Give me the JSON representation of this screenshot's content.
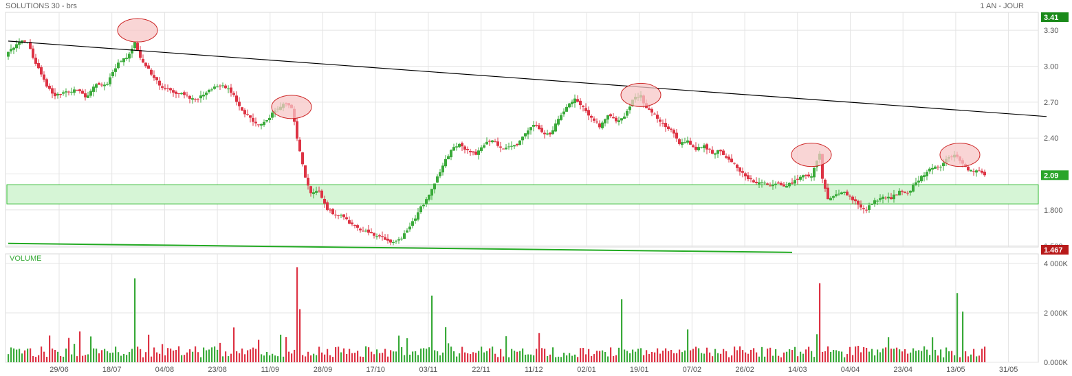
{
  "header": {
    "title": "SOLUTIONS 30 - brs",
    "period": "1 AN - JOUR"
  },
  "volume_panel": {
    "title": "VOLUME"
  },
  "colors": {
    "up": "#3aaa3a",
    "down": "#dd3344",
    "support_band": "#d6f5d6",
    "support_band_border": "#2eb82e",
    "trend_line": "#000000",
    "support_line": "#22aa22",
    "highlight_fill": "#f7c7c7",
    "highlight_stroke": "#cc2222",
    "grid": "#e4e4e4"
  },
  "chart_data": [
    {
      "type": "candlestick",
      "title": "SOLUTIONS 30 - brs",
      "period": "1 AN - JOUR",
      "x_tick_labels": [
        "29/06",
        "18/07",
        "04/08",
        "23/08",
        "11/09",
        "28/09",
        "17/10",
        "03/11",
        "22/11",
        "11/12",
        "02/01",
        "19/01",
        "07/02",
        "26/02",
        "14/03",
        "04/04",
        "23/04",
        "13/05",
        "31/05"
      ],
      "y_tick_labels": [
        "3.30",
        "3.00",
        "2.70",
        "2.40",
        "2.10",
        "1.800",
        "1.500"
      ],
      "ylim": [
        1.49,
        3.45
      ],
      "price_badges": [
        {
          "label": "3.41",
          "value": 3.41,
          "color": "#1a8a1a"
        },
        {
          "label": "2.09",
          "value": 2.09,
          "color": "#2aa52a"
        },
        {
          "label": "1.467",
          "value": 1.467,
          "color": "#b81a1a"
        }
      ],
      "close_series": [
        {
          "t": 0,
          "v": 3.12
        },
        {
          "t": 4,
          "v": 3.2
        },
        {
          "t": 7,
          "v": 3.2
        },
        {
          "t": 10,
          "v": 3.02
        },
        {
          "t": 14,
          "v": 2.83
        },
        {
          "t": 17,
          "v": 2.75
        },
        {
          "t": 21,
          "v": 2.79
        },
        {
          "t": 25,
          "v": 2.8
        },
        {
          "t": 28,
          "v": 2.74
        },
        {
          "t": 32,
          "v": 2.85
        },
        {
          "t": 36,
          "v": 2.85
        },
        {
          "t": 40,
          "v": 3.03
        },
        {
          "t": 43,
          "v": 3.07
        },
        {
          "t": 46,
          "v": 3.2
        },
        {
          "t": 48,
          "v": 3.07
        },
        {
          "t": 52,
          "v": 2.93
        },
        {
          "t": 56,
          "v": 2.82
        },
        {
          "t": 60,
          "v": 2.78
        },
        {
          "t": 64,
          "v": 2.76
        },
        {
          "t": 68,
          "v": 2.72
        },
        {
          "t": 72,
          "v": 2.78
        },
        {
          "t": 75,
          "v": 2.83
        },
        {
          "t": 78,
          "v": 2.84
        },
        {
          "t": 82,
          "v": 2.76
        },
        {
          "t": 85,
          "v": 2.63
        },
        {
          "t": 88,
          "v": 2.57
        },
        {
          "t": 91,
          "v": 2.51
        },
        {
          "t": 94,
          "v": 2.55
        },
        {
          "t": 97,
          "v": 2.63
        },
        {
          "t": 101,
          "v": 2.69
        },
        {
          "t": 103,
          "v": 2.65
        },
        {
          "t": 106,
          "v": 2.29
        },
        {
          "t": 108,
          "v": 2.07
        },
        {
          "t": 110,
          "v": 1.94
        },
        {
          "t": 113,
          "v": 1.96
        },
        {
          "t": 116,
          "v": 1.8
        },
        {
          "t": 119,
          "v": 1.76
        },
        {
          "t": 122,
          "v": 1.74
        },
        {
          "t": 125,
          "v": 1.68
        },
        {
          "t": 128,
          "v": 1.63
        },
        {
          "t": 131,
          "v": 1.61
        },
        {
          "t": 134,
          "v": 1.58
        },
        {
          "t": 137,
          "v": 1.55
        },
        {
          "t": 140,
          "v": 1.53
        },
        {
          "t": 143,
          "v": 1.56
        },
        {
          "t": 146,
          "v": 1.66
        },
        {
          "t": 149,
          "v": 1.78
        },
        {
          "t": 152,
          "v": 1.89
        },
        {
          "t": 155,
          "v": 2.02
        },
        {
          "t": 158,
          "v": 2.17
        },
        {
          "t": 161,
          "v": 2.3
        },
        {
          "t": 164,
          "v": 2.35
        },
        {
          "t": 167,
          "v": 2.3
        },
        {
          "t": 170,
          "v": 2.26
        },
        {
          "t": 173,
          "v": 2.34
        },
        {
          "t": 176,
          "v": 2.38
        },
        {
          "t": 179,
          "v": 2.32
        },
        {
          "t": 182,
          "v": 2.33
        },
        {
          "t": 185,
          "v": 2.34
        },
        {
          "t": 188,
          "v": 2.44
        },
        {
          "t": 191,
          "v": 2.51
        },
        {
          "t": 194,
          "v": 2.45
        },
        {
          "t": 197,
          "v": 2.43
        },
        {
          "t": 200,
          "v": 2.56
        },
        {
          "t": 203,
          "v": 2.66
        },
        {
          "t": 206,
          "v": 2.73
        },
        {
          "t": 209,
          "v": 2.66
        },
        {
          "t": 212,
          "v": 2.57
        },
        {
          "t": 215,
          "v": 2.49
        },
        {
          "t": 218,
          "v": 2.59
        },
        {
          "t": 221,
          "v": 2.54
        },
        {
          "t": 224,
          "v": 2.58
        },
        {
          "t": 227,
          "v": 2.72
        },
        {
          "t": 230,
          "v": 2.76
        },
        {
          "t": 232,
          "v": 2.65
        },
        {
          "t": 235,
          "v": 2.6
        },
        {
          "t": 238,
          "v": 2.52
        },
        {
          "t": 241,
          "v": 2.47
        },
        {
          "t": 244,
          "v": 2.35
        },
        {
          "t": 247,
          "v": 2.38
        },
        {
          "t": 250,
          "v": 2.3
        },
        {
          "t": 253,
          "v": 2.34
        },
        {
          "t": 256,
          "v": 2.27
        },
        {
          "t": 259,
          "v": 2.29
        },
        {
          "t": 262,
          "v": 2.22
        },
        {
          "t": 265,
          "v": 2.15
        },
        {
          "t": 268,
          "v": 2.08
        },
        {
          "t": 271,
          "v": 2.03
        },
        {
          "t": 274,
          "v": 2.03
        },
        {
          "t": 277,
          "v": 2.0
        },
        {
          "t": 280,
          "v": 2.02
        },
        {
          "t": 283,
          "v": 2.0
        },
        {
          "t": 286,
          "v": 2.05
        },
        {
          "t": 289,
          "v": 2.09
        },
        {
          "t": 292,
          "v": 2.08
        },
        {
          "t": 295,
          "v": 2.27
        },
        {
          "t": 296,
          "v": 2.06
        },
        {
          "t": 298,
          "v": 1.89
        },
        {
          "t": 301,
          "v": 1.93
        },
        {
          "t": 304,
          "v": 1.95
        },
        {
          "t": 307,
          "v": 1.88
        },
        {
          "t": 310,
          "v": 1.82
        },
        {
          "t": 312,
          "v": 1.8
        },
        {
          "t": 315,
          "v": 1.88
        },
        {
          "t": 318,
          "v": 1.91
        },
        {
          "t": 321,
          "v": 1.89
        },
        {
          "t": 324,
          "v": 1.96
        },
        {
          "t": 327,
          "v": 1.94
        },
        {
          "t": 330,
          "v": 2.03
        },
        {
          "t": 333,
          "v": 2.09
        },
        {
          "t": 336,
          "v": 2.15
        },
        {
          "t": 339,
          "v": 2.16
        },
        {
          "t": 342,
          "v": 2.24
        },
        {
          "t": 344,
          "v": 2.26
        },
        {
          "t": 346,
          "v": 2.21
        },
        {
          "t": 349,
          "v": 2.13
        },
        {
          "t": 352,
          "v": 2.13
        },
        {
          "t": 355,
          "v": 2.09
        }
      ],
      "volume": {
        "ylim": [
          0,
          4000000
        ],
        "y_tick_labels": [
          "4 000K",
          "2 000K",
          "0.000K"
        ],
        "spikes": [
          {
            "t": 46,
            "v": 3400000,
            "dir": "up"
          },
          {
            "t": 105,
            "v": 3850000,
            "dir": "down"
          },
          {
            "t": 106,
            "v": 2150000,
            "dir": "down"
          },
          {
            "t": 154,
            "v": 2700000,
            "dir": "up"
          },
          {
            "t": 223,
            "v": 2550000,
            "dir": "up"
          },
          {
            "t": 295,
            "v": 3200000,
            "dir": "down"
          },
          {
            "t": 345,
            "v": 2800000,
            "dir": "up"
          },
          {
            "t": 347,
            "v": 2050000,
            "dir": "up"
          }
        ]
      },
      "overlays": {
        "support_zone": [
          1.85,
          2.01
        ],
        "resistance_trendline": [
          {
            "t": 0,
            "v": 3.21
          },
          {
            "t": 370,
            "v": 2.58
          }
        ],
        "support_trendline": [
          {
            "t": 0,
            "v": 1.52
          },
          {
            "t": 285,
            "v": 1.445
          }
        ],
        "highlighted_peaks": [
          {
            "t": 47,
            "v": 3.3
          },
          {
            "t": 103,
            "v": 2.66
          },
          {
            "t": 230,
            "v": 2.76
          },
          {
            "t": 292,
            "v": 2.26
          },
          {
            "t": 346,
            "v": 2.26
          }
        ]
      }
    }
  ]
}
